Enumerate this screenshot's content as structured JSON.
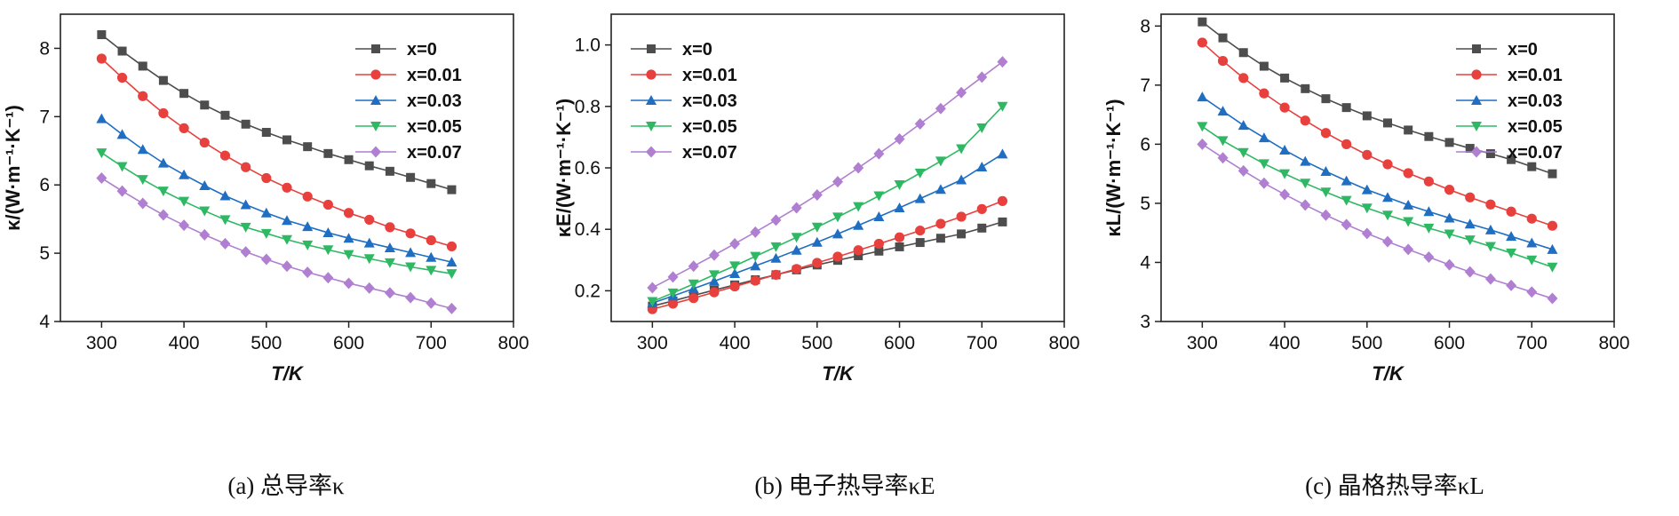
{
  "colors": {
    "x=0": "#4d4d4d",
    "x=0.01": "#e8403d",
    "x=0.03": "#1f6ec2",
    "x=0.05": "#2fb864",
    "x=0.07": "#b07fd1"
  },
  "chart_data": [
    {
      "type": "line",
      "caption": "(a) 总导率κ",
      "xlabel": "T/K",
      "ylabel": "κ/(W·m⁻¹·K⁻¹)",
      "xlim": [
        250,
        800
      ],
      "ylim": [
        4,
        8.5
      ],
      "xticks": [
        300,
        400,
        500,
        600,
        700,
        800
      ],
      "yticks": [
        4,
        5,
        6,
        7,
        8
      ],
      "legend": "top-right",
      "x": [
        300,
        325,
        350,
        375,
        400,
        425,
        450,
        475,
        500,
        525,
        550,
        575,
        600,
        625,
        650,
        675,
        700,
        725
      ],
      "series": [
        {
          "name": "x=0",
          "marker": "square",
          "values": [
            8.2,
            7.96,
            7.74,
            7.53,
            7.34,
            7.17,
            7.02,
            6.89,
            6.77,
            6.66,
            6.56,
            6.46,
            6.37,
            6.28,
            6.2,
            6.11,
            6.02,
            5.93
          ]
        },
        {
          "name": "x=0.01",
          "marker": "circle",
          "values": [
            7.85,
            7.57,
            7.3,
            7.05,
            6.83,
            6.62,
            6.43,
            6.26,
            6.1,
            5.96,
            5.83,
            5.71,
            5.59,
            5.49,
            5.38,
            5.29,
            5.19,
            5.1
          ]
        },
        {
          "name": "x=0.03",
          "marker": "triangle-up",
          "values": [
            6.97,
            6.74,
            6.52,
            6.32,
            6.15,
            5.99,
            5.84,
            5.71,
            5.59,
            5.48,
            5.39,
            5.3,
            5.22,
            5.15,
            5.08,
            5.01,
            4.94,
            4.87
          ]
        },
        {
          "name": "x=0.05",
          "marker": "triangle-down",
          "values": [
            6.47,
            6.27,
            6.08,
            5.91,
            5.76,
            5.62,
            5.49,
            5.38,
            5.29,
            5.2,
            5.12,
            5.05,
            4.98,
            4.92,
            4.86,
            4.8,
            4.75,
            4.7
          ]
        },
        {
          "name": "x=0.07",
          "marker": "diamond",
          "values": [
            6.1,
            5.91,
            5.73,
            5.56,
            5.41,
            5.27,
            5.14,
            5.02,
            4.91,
            4.81,
            4.72,
            4.64,
            4.56,
            4.49,
            4.42,
            4.35,
            4.27,
            4.19
          ]
        }
      ]
    },
    {
      "type": "line",
      "caption": "(b) 电子热导率κE",
      "xlabel": "T/K",
      "ylabel": "κE/(W·m⁻¹·K⁻¹)",
      "xlim": [
        250,
        800
      ],
      "ylim": [
        0.1,
        1.1
      ],
      "xticks": [
        300,
        400,
        500,
        600,
        700,
        800
      ],
      "yticks": [
        0.2,
        0.4,
        0.6,
        0.8,
        1.0
      ],
      "legend": "top-left",
      "x": [
        300,
        325,
        350,
        375,
        400,
        425,
        450,
        475,
        500,
        525,
        550,
        575,
        600,
        625,
        650,
        675,
        700,
        725
      ],
      "series": [
        {
          "name": "x=0",
          "marker": "square",
          "values": [
            0.15,
            0.167,
            0.185,
            0.202,
            0.219,
            0.236,
            0.252,
            0.268,
            0.284,
            0.299,
            0.314,
            0.329,
            0.343,
            0.357,
            0.371,
            0.385,
            0.404,
            0.424
          ]
        },
        {
          "name": "x=0.01",
          "marker": "circle",
          "values": [
            0.14,
            0.158,
            0.176,
            0.195,
            0.214,
            0.233,
            0.252,
            0.271,
            0.291,
            0.311,
            0.332,
            0.353,
            0.374,
            0.396,
            0.418,
            0.441,
            0.466,
            0.492
          ]
        },
        {
          "name": "x=0.03",
          "marker": "triangle-up",
          "values": [
            0.16,
            0.183,
            0.207,
            0.231,
            0.256,
            0.281,
            0.306,
            0.332,
            0.358,
            0.385,
            0.413,
            0.441,
            0.47,
            0.5,
            0.53,
            0.561,
            0.603,
            0.645
          ]
        },
        {
          "name": "x=0.05",
          "marker": "triangle-down",
          "values": [
            0.165,
            0.193,
            0.222,
            0.252,
            0.281,
            0.312,
            0.343,
            0.374,
            0.407,
            0.44,
            0.474,
            0.509,
            0.545,
            0.583,
            0.622,
            0.662,
            0.73,
            0.8
          ]
        },
        {
          "name": "x=0.07",
          "marker": "diamond",
          "values": [
            0.21,
            0.245,
            0.28,
            0.316,
            0.353,
            0.391,
            0.43,
            0.47,
            0.512,
            0.555,
            0.6,
            0.646,
            0.694,
            0.743,
            0.793,
            0.845,
            0.895,
            0.945
          ]
        }
      ]
    },
    {
      "type": "line",
      "caption": "(c) 晶格热导率κL",
      "xlabel": "T/K",
      "ylabel": "κL/(W·m⁻¹·K⁻¹)",
      "xlim": [
        250,
        800
      ],
      "ylim": [
        3,
        8.2
      ],
      "xticks": [
        300,
        400,
        500,
        600,
        700,
        800
      ],
      "yticks": [
        3,
        4,
        5,
        6,
        7,
        8
      ],
      "legend": "top-right",
      "x": [
        300,
        325,
        350,
        375,
        400,
        425,
        450,
        475,
        500,
        525,
        550,
        575,
        600,
        625,
        650,
        675,
        700,
        725
      ],
      "series": [
        {
          "name": "x=0",
          "marker": "square",
          "values": [
            8.07,
            7.8,
            7.55,
            7.32,
            7.12,
            6.94,
            6.77,
            6.62,
            6.48,
            6.36,
            6.24,
            6.13,
            6.03,
            5.93,
            5.84,
            5.74,
            5.62,
            5.5
          ]
        },
        {
          "name": "x=0.01",
          "marker": "circle",
          "values": [
            7.72,
            7.41,
            7.12,
            6.86,
            6.62,
            6.4,
            6.19,
            6.0,
            5.82,
            5.66,
            5.51,
            5.37,
            5.23,
            5.1,
            4.98,
            4.86,
            4.74,
            4.62
          ]
        },
        {
          "name": "x=0.03",
          "marker": "triangle-up",
          "values": [
            6.8,
            6.56,
            6.32,
            6.11,
            5.9,
            5.71,
            5.54,
            5.38,
            5.23,
            5.1,
            4.97,
            4.86,
            4.75,
            4.65,
            4.55,
            4.44,
            4.33,
            4.22
          ]
        },
        {
          "name": "x=0.05",
          "marker": "triangle-down",
          "values": [
            6.3,
            6.06,
            5.86,
            5.67,
            5.5,
            5.34,
            5.19,
            5.05,
            4.92,
            4.8,
            4.69,
            4.58,
            4.48,
            4.38,
            4.27,
            4.16,
            4.04,
            3.92
          ]
        },
        {
          "name": "x=0.07",
          "marker": "diamond",
          "values": [
            6.0,
            5.77,
            5.55,
            5.34,
            5.15,
            4.97,
            4.8,
            4.64,
            4.49,
            4.35,
            4.22,
            4.09,
            3.96,
            3.84,
            3.72,
            3.61,
            3.5,
            3.39
          ]
        }
      ]
    }
  ]
}
